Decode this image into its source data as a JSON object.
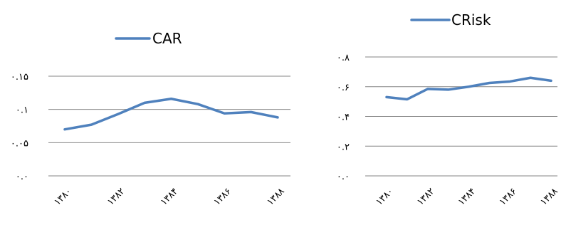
{
  "chart_data": [
    {
      "type": "line",
      "legend_position": "top",
      "grid": true,
      "ylim": [
        0,
        0.15
      ],
      "y_ticks": [
        0,
        0.05,
        0.1,
        0.15
      ],
      "y_tick_labels": [
        "۰.۰",
        "۰.۰۵",
        "۰.۱",
        "۰.۱۵"
      ],
      "x_tick_labels": [
        "۱۳۸۰",
        "۱۳۸۲",
        "۱۳۸۴",
        "۱۳۸۶",
        "۱۳۸۸"
      ],
      "x": [
        1380,
        1381,
        1382,
        1383,
        1384,
        1385,
        1386,
        1387,
        1388
      ],
      "series": [
        {
          "name": "CAR",
          "color": "#4f81bd",
          "values": [
            0.07,
            0.077,
            0.093,
            0.11,
            0.116,
            0.108,
            0.094,
            0.096,
            0.088
          ]
        }
      ]
    },
    {
      "type": "line",
      "legend_position": "top",
      "grid": true,
      "ylim": [
        0,
        0.8
      ],
      "y_ticks": [
        0,
        0.2,
        0.4,
        0.6,
        0.8
      ],
      "y_tick_labels": [
        "۰.۰",
        "۰.۲",
        "۰.۴",
        "۰.۶",
        "۰.۸"
      ],
      "x_tick_labels": [
        "۱۳۸۰",
        "۱۳۸۲",
        "۱۳۸۴",
        "۱۳۸۶",
        "۱۳۸۸"
      ],
      "x": [
        1380,
        1381,
        1382,
        1383,
        1384,
        1385,
        1386,
        1387,
        1388
      ],
      "series": [
        {
          "name": "CRisk",
          "color": "#4f81bd",
          "values": [
            0.53,
            0.515,
            0.585,
            0.58,
            0.6,
            0.625,
            0.635,
            0.66,
            0.64
          ]
        }
      ]
    }
  ]
}
